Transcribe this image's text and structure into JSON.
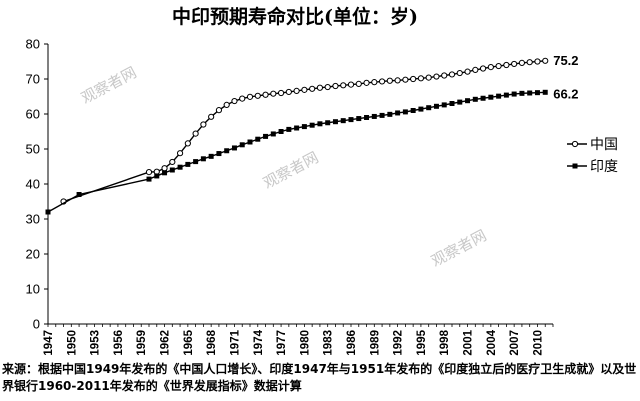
{
  "chart_data": {
    "type": "line",
    "title": "中印预期寿命对比(单位：岁)",
    "xlabel": "",
    "ylabel": "",
    "ylim": [
      0,
      80
    ],
    "yticks": [
      0,
      10,
      20,
      30,
      40,
      50,
      60,
      70,
      80
    ],
    "xticks": [
      1947,
      1950,
      1953,
      1956,
      1959,
      1962,
      1965,
      1968,
      1971,
      1974,
      1977,
      1980,
      1983,
      1986,
      1989,
      1992,
      1995,
      1998,
      2001,
      2004,
      2007,
      2010
    ],
    "xlim": [
      1947,
      2012
    ],
    "grid": false,
    "legend_position": "right",
    "series": [
      {
        "name": "中国",
        "marker": "open-circle",
        "color": "#000000",
        "end_label": "75.2",
        "x": [
          1949,
          1960,
          1961,
          1962,
          1963,
          1964,
          1965,
          1966,
          1967,
          1968,
          1969,
          1970,
          1971,
          1972,
          1973,
          1974,
          1975,
          1976,
          1977,
          1978,
          1979,
          1980,
          1981,
          1982,
          1983,
          1984,
          1985,
          1986,
          1987,
          1988,
          1989,
          1990,
          1991,
          1992,
          1993,
          1994,
          1995,
          1996,
          1997,
          1998,
          1999,
          2000,
          2001,
          2002,
          2003,
          2004,
          2005,
          2006,
          2007,
          2008,
          2009,
          2010,
          2011
        ],
        "y": [
          35.0,
          43.4,
          43.5,
          44.5,
          46.3,
          48.8,
          51.6,
          54.4,
          57.0,
          59.2,
          61.1,
          62.6,
          63.7,
          64.4,
          64.9,
          65.2,
          65.5,
          65.8,
          66.0,
          66.3,
          66.6,
          66.9,
          67.2,
          67.5,
          67.7,
          68.0,
          68.2,
          68.4,
          68.6,
          68.9,
          69.1,
          69.3,
          69.5,
          69.6,
          69.8,
          70.0,
          70.2,
          70.4,
          70.7,
          71.0,
          71.3,
          71.7,
          72.1,
          72.6,
          73.0,
          73.4,
          73.7,
          74.0,
          74.3,
          74.6,
          74.8,
          75.0,
          75.2
        ]
      },
      {
        "name": "印度",
        "marker": "filled-square",
        "color": "#000000",
        "end_label": "66.2",
        "x": [
          1947,
          1951,
          1960,
          1961,
          1962,
          1963,
          1964,
          1965,
          1966,
          1967,
          1968,
          1969,
          1970,
          1971,
          1972,
          1973,
          1974,
          1975,
          1976,
          1977,
          1978,
          1979,
          1980,
          1981,
          1982,
          1983,
          1984,
          1985,
          1986,
          1987,
          1988,
          1989,
          1990,
          1991,
          1992,
          1993,
          1994,
          1995,
          1996,
          1997,
          1998,
          1999,
          2000,
          2001,
          2002,
          2003,
          2004,
          2005,
          2006,
          2007,
          2008,
          2009,
          2010,
          2011
        ],
        "y": [
          32.0,
          37.0,
          41.4,
          42.3,
          43.2,
          44.0,
          44.8,
          45.6,
          46.4,
          47.2,
          47.9,
          48.7,
          49.5,
          50.3,
          51.2,
          52.0,
          52.8,
          53.6,
          54.3,
          55.0,
          55.6,
          56.0,
          56.4,
          56.8,
          57.2,
          57.5,
          57.8,
          58.1,
          58.4,
          58.7,
          59.0,
          59.3,
          59.6,
          59.9,
          60.3,
          60.6,
          61.0,
          61.4,
          61.8,
          62.2,
          62.6,
          63.0,
          63.4,
          63.8,
          64.2,
          64.5,
          64.8,
          65.1,
          65.4,
          65.7,
          65.9,
          66.0,
          66.1,
          66.2
        ]
      }
    ]
  },
  "watermark_text": "观察者网",
  "source_note": "来源：根据中国1949年发布的《中国人口增长》、印度1947年与1951年发布的《印度独立后的医疗卫生成就》以及世界银行1960-2011年发布的《世界发展指标》数据计算"
}
